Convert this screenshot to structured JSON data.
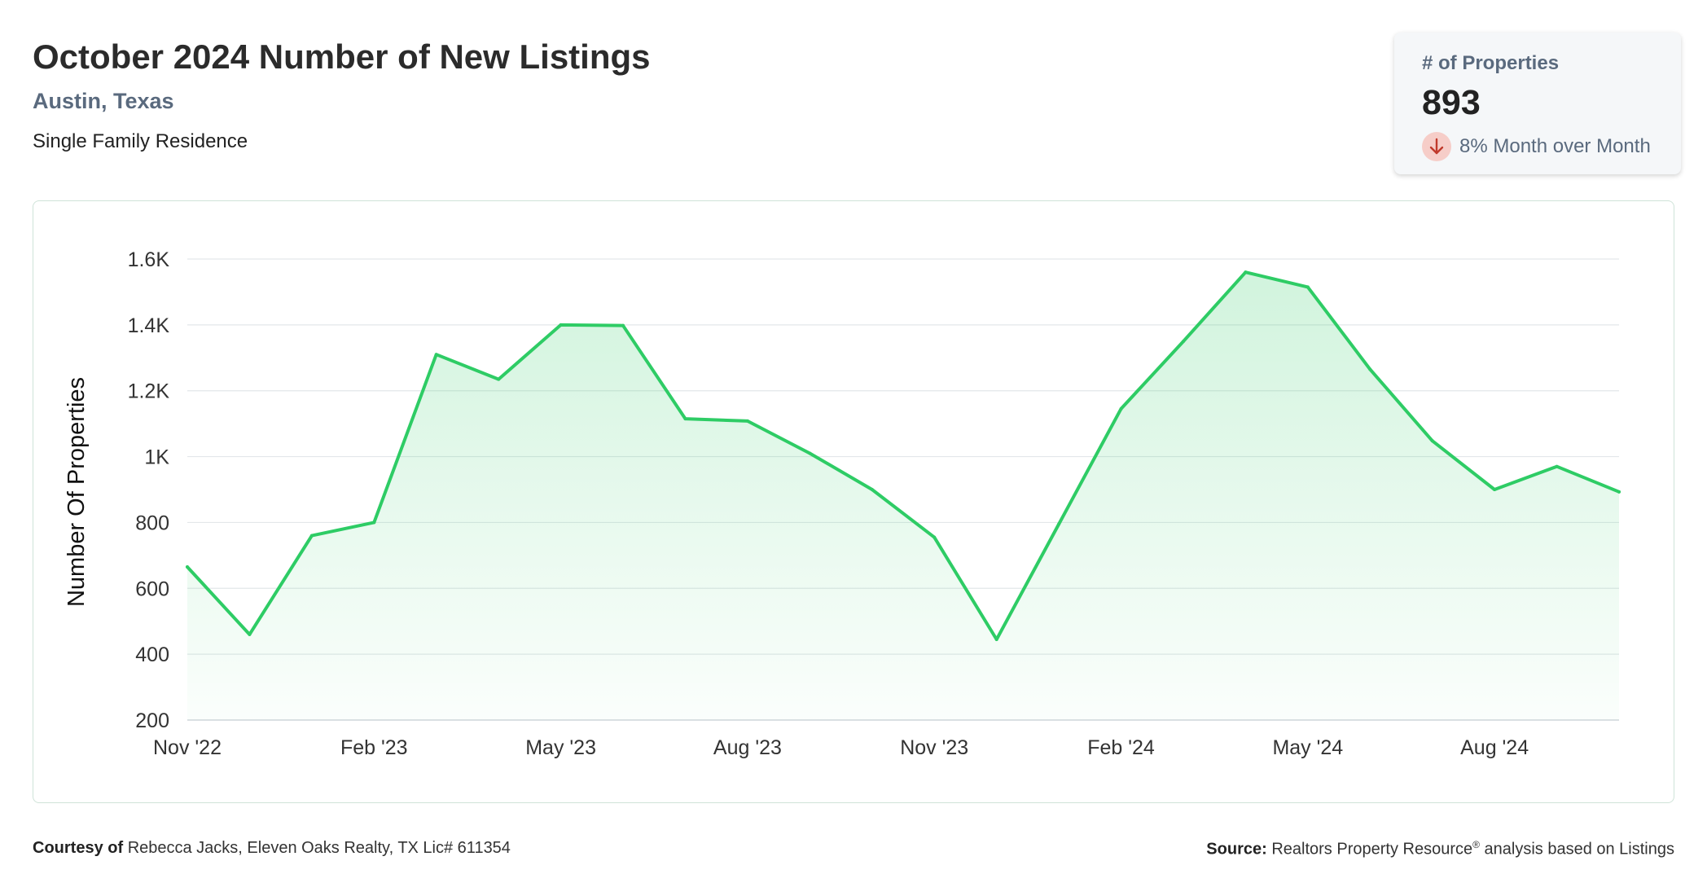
{
  "header": {
    "title": "October 2024 Number of New Listings",
    "location": "Austin, Texas",
    "property_type": "Single Family Residence"
  },
  "stat_card": {
    "label": "# of Properties",
    "value": "893",
    "change_text": "8% Month over Month",
    "change_direction": "down",
    "change_icon": "arrow-down-icon",
    "change_color": "#c0392b"
  },
  "chart_data": {
    "type": "area",
    "title": "",
    "xlabel": "",
    "ylabel": "Number Of Properties",
    "x": [
      "Nov '22",
      "Dec '22",
      "Jan '23",
      "Feb '23",
      "Mar '23",
      "Apr '23",
      "May '23",
      "Jun '23",
      "Jul '23",
      "Aug '23",
      "Sep '23",
      "Oct '23",
      "Nov '23",
      "Dec '23",
      "Jan '24",
      "Feb '24",
      "Mar '24",
      "Apr '24",
      "May '24",
      "Jun '24",
      "Jul '24",
      "Aug '24",
      "Sep '24",
      "Oct '24"
    ],
    "x_tick_labels": [
      "Nov '22",
      "Feb '23",
      "May '23",
      "Aug '23",
      "Nov '23",
      "Feb '24",
      "May '24",
      "Aug '24"
    ],
    "series": [
      {
        "name": "",
        "values": [
          665,
          460,
          760,
          800,
          1310,
          1235,
          1400,
          1398,
          1115,
          1108,
          1010,
          900,
          755,
          445,
          795,
          1145,
          1350,
          1560,
          1515,
          1265,
          1048,
          900,
          970,
          893
        ]
      }
    ],
    "y_ticks": [
      200,
      400,
      600,
      800,
      1000,
      1200,
      1400,
      1600
    ],
    "y_tick_labels": [
      "200",
      "400",
      "600",
      "800",
      "1K",
      "1.2K",
      "1.4K",
      "1.6K"
    ],
    "ylim": [
      200,
      1600
    ],
    "grid": true,
    "legend": "none",
    "line_color": "#2ecc65",
    "fill_color": "#2ecc65"
  },
  "footer": {
    "courtesy_label": "Courtesy of",
    "courtesy_text": "Rebecca Jacks, Eleven Oaks Realty, TX Lic# 611354",
    "source_label": "Source:",
    "source_text_1": "Realtors Property Resource",
    "source_sup": "®",
    "source_text_2": "analysis based on Listings"
  }
}
